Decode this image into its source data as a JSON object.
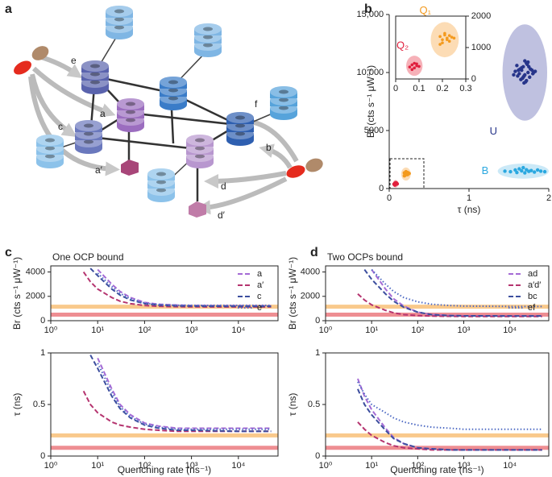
{
  "diagram": {
    "panel": "a",
    "labels": [
      "e",
      "a",
      "c",
      "a′",
      "f",
      "b",
      "d",
      "d′"
    ]
  },
  "chart_data": [
    {
      "type": "scatter",
      "panel": "b",
      "xlabel": "τ (ns)",
      "ylabel": "Br (cts s⁻¹ μW⁻¹)",
      "xlim": [
        0,
        2
      ],
      "xticks": [
        0,
        1,
        2
      ],
      "ylim": [
        0,
        15000
      ],
      "yticks": [
        0,
        5000,
        {
          "value": 10000,
          "label": "10,000"
        },
        {
          "value": 15000,
          "label": "15,000"
        }
      ],
      "series": [
        {
          "name": "U",
          "color": "#27358a",
          "ellipse_color": "#b4b6da",
          "ellipse": {
            "cx": 1.7,
            "cy": 10000,
            "rx": 0.28,
            "ry": 4150
          },
          "x": [
            1.62,
            1.7,
            1.75,
            1.68,
            1.58,
            1.8,
            1.72,
            1.65,
            1.77,
            1.6,
            1.69,
            1.74,
            1.66,
            1.71,
            1.83,
            1.63,
            1.73,
            1.67,
            1.79,
            1.56,
            1.7,
            1.76,
            1.64,
            1.72,
            1.68,
            1.81,
            1.61,
            1.74,
            1.69,
            1.66
          ],
          "values": [
            10200,
            9800,
            10500,
            9600,
            10100,
            9900,
            10800,
            9400,
            10300,
            10600,
            9700,
            10000,
            10400,
            9200,
            10100,
            9900,
            10700,
            9500,
            10200,
            9800,
            11000,
            9600,
            10300,
            9300,
            10500,
            10000,
            9700,
            10900,
            9100,
            10200
          ]
        },
        {
          "name": "B",
          "color": "#2aa8e0",
          "ellipse_color": "#c2e5f6",
          "ellipse": {
            "cx": 1.68,
            "cy": 1500,
            "rx": 0.32,
            "ry": 650
          },
          "x": [
            1.45,
            1.52,
            1.58,
            1.6,
            1.63,
            1.66,
            1.7,
            1.72,
            1.75,
            1.78,
            1.82,
            1.86,
            1.9,
            1.95,
            1.68
          ],
          "values": [
            1500,
            1450,
            1600,
            1380,
            1700,
            1520,
            1350,
            1620,
            1480,
            1550,
            1420,
            1600,
            1500,
            1450,
            1800
          ]
        },
        {
          "name": "Q₁",
          "color": "#f39a1e",
          "ellipse_color": "#fbd6a8",
          "ellipse": {
            "cx": 0.21,
            "cy": 1250,
            "rx": 0.06,
            "ry": 560
          },
          "x": [
            0.19,
            0.2,
            0.21,
            0.22,
            0.23,
            0.2,
            0.24,
            0.21,
            0.22,
            0.25,
            0.19,
            0.23
          ],
          "values": [
            1350,
            1250,
            1400,
            1300,
            1200,
            1150,
            1330,
            1450,
            1250,
            1300,
            1100,
            1380
          ]
        },
        {
          "name": "Q₂",
          "color": "#e01f3d",
          "ellipse_color": "#f5a3ab",
          "ellipse": {
            "cx": 0.08,
            "cy": 420,
            "rx": 0.035,
            "ry": 320
          },
          "x": [
            0.06,
            0.07,
            0.08,
            0.09,
            0.07,
            0.08,
            0.09,
            0.1
          ],
          "values": [
            380,
            450,
            500,
            420,
            300,
            350,
            480,
            400
          ]
        }
      ],
      "inset": {
        "xlim": [
          0,
          0.3
        ],
        "xticks": [
          0,
          0.1,
          0.2,
          0.3
        ],
        "ylim": [
          0,
          2000
        ],
        "yticks": [
          0,
          1000,
          2000
        ],
        "series_shown": [
          "Q₁",
          "Q₂"
        ]
      }
    },
    {
      "type": "line",
      "panel": "c",
      "title": "One OCP bound",
      "ylabel": "Br (cts s⁻¹ μW⁻¹)",
      "xscale": "log",
      "xlim": [
        1,
        70000
      ],
      "xticks": [
        {
          "value": 1,
          "label": "10⁰"
        },
        {
          "value": 10,
          "label": "10¹"
        },
        {
          "value": 100,
          "label": "10²"
        },
        {
          "value": 1000,
          "label": "10³"
        },
        {
          "value": 10000,
          "label": "10⁴"
        }
      ],
      "ylim": [
        0,
        4500
      ],
      "yticks": [
        0,
        2000,
        4000
      ],
      "legend": "upper right",
      "bands": [
        {
          "value": 1150,
          "color": "#f9c98c"
        },
        {
          "value": 500,
          "color": "#ee8e92"
        }
      ],
      "series": [
        {
          "name": "a",
          "color": "#a56bd5",
          "dash": "dashed",
          "x": [
            10,
            20,
            30,
            50,
            100,
            200,
            500,
            1000,
            10000,
            50000
          ],
          "values": [
            4200,
            3000,
            2400,
            1900,
            1500,
            1350,
            1280,
            1250,
            1230,
            1220
          ]
        },
        {
          "name": "a′",
          "color": "#b5346f",
          "dash": "dashed",
          "x": [
            5,
            7,
            10,
            20,
            30,
            50,
            100,
            200,
            500,
            1000,
            10000,
            50000
          ],
          "values": [
            4000,
            3200,
            2600,
            1900,
            1600,
            1400,
            1250,
            1180,
            1150,
            1140,
            1130,
            1130
          ]
        },
        {
          "name": "c",
          "color": "#3c4e9e",
          "dash": "dashed",
          "x": [
            7,
            10,
            20,
            30,
            50,
            100,
            200,
            500,
            1000,
            10000,
            50000
          ],
          "values": [
            4300,
            3700,
            2600,
            2100,
            1700,
            1400,
            1280,
            1220,
            1200,
            1180,
            1180
          ]
        },
        {
          "name": "e",
          "color": "#4f6bc4",
          "dash": "dotted",
          "x": [
            10,
            20,
            30,
            50,
            100,
            200,
            500,
            1000,
            10000,
            50000
          ],
          "values": [
            3900,
            2800,
            2250,
            1800,
            1450,
            1320,
            1270,
            1260,
            1260,
            1260
          ]
        }
      ]
    },
    {
      "type": "line",
      "xlabel": "Quenching rate (ns⁻¹)",
      "ylabel": "τ (ns)",
      "xscale": "log",
      "xlim": [
        1,
        70000
      ],
      "xticks": [
        {
          "value": 1,
          "label": "10⁰"
        },
        {
          "value": 10,
          "label": "10¹"
        },
        {
          "value": 100,
          "label": "10²"
        },
        {
          "value": 1000,
          "label": "10³"
        },
        {
          "value": 10000,
          "label": "10⁴"
        }
      ],
      "ylim": [
        0,
        1
      ],
      "yticks": [
        0,
        0.5,
        1
      ],
      "bands": [
        {
          "value": 0.2,
          "color": "#f9c98c"
        },
        {
          "value": 0.08,
          "color": "#ee8e92"
        }
      ],
      "series": [
        {
          "name": "a",
          "color": "#a56bd5",
          "dash": "dashed",
          "x": [
            10,
            20,
            30,
            50,
            100,
            200,
            500,
            1000,
            10000,
            50000
          ],
          "values": [
            0.95,
            0.65,
            0.5,
            0.4,
            0.32,
            0.29,
            0.27,
            0.27,
            0.27,
            0.27
          ]
        },
        {
          "name": "a′",
          "color": "#b5346f",
          "dash": "dashed",
          "x": [
            5,
            7,
            10,
            20,
            30,
            50,
            100,
            200,
            500,
            1000,
            10000,
            50000
          ],
          "values": [
            0.63,
            0.5,
            0.42,
            0.33,
            0.3,
            0.28,
            0.26,
            0.25,
            0.24,
            0.24,
            0.24,
            0.24
          ]
        },
        {
          "name": "c",
          "color": "#3c4e9e",
          "dash": "dashed",
          "x": [
            7,
            10,
            20,
            30,
            50,
            100,
            200,
            500,
            1000,
            10000,
            50000
          ],
          "values": [
            0.98,
            0.85,
            0.58,
            0.46,
            0.37,
            0.3,
            0.27,
            0.25,
            0.25,
            0.24,
            0.24
          ]
        },
        {
          "name": "e",
          "color": "#4f6bc4",
          "dash": "dotted",
          "x": [
            10,
            20,
            30,
            50,
            100,
            200,
            500,
            1000,
            10000,
            50000
          ],
          "values": [
            0.9,
            0.62,
            0.48,
            0.38,
            0.31,
            0.28,
            0.26,
            0.26,
            0.26,
            0.26
          ]
        }
      ]
    },
    {
      "type": "line",
      "panel": "d",
      "title": "Two OCPs bound",
      "ylabel": "Br (cts s⁻¹ μW⁻¹)",
      "xscale": "log",
      "xlim": [
        1,
        70000
      ],
      "xticks": [
        {
          "value": 1,
          "label": "10⁰"
        },
        {
          "value": 10,
          "label": "10¹"
        },
        {
          "value": 100,
          "label": "10²"
        },
        {
          "value": 1000,
          "label": "10³"
        },
        {
          "value": 10000,
          "label": "10⁴"
        }
      ],
      "ylim": [
        0,
        4500
      ],
      "yticks": [
        0,
        2000,
        4000
      ],
      "legend": "upper right",
      "bands": [
        {
          "value": 1150,
          "color": "#f9c98c"
        },
        {
          "value": 500,
          "color": "#ee8e92"
        }
      ],
      "series": [
        {
          "name": "ad",
          "color": "#a56bd5",
          "dash": "dashed",
          "x": [
            10,
            20,
            30,
            50,
            100,
            200,
            500,
            1000,
            10000,
            50000
          ],
          "values": [
            4200,
            2600,
            1800,
            1200,
            700,
            500,
            420,
            400,
            380,
            380
          ]
        },
        {
          "name": "a′d′",
          "color": "#b5346f",
          "dash": "dashed",
          "x": [
            5,
            7,
            10,
            20,
            30,
            50,
            100,
            200,
            500,
            1000,
            10000,
            50000
          ],
          "values": [
            2200,
            1700,
            1300,
            850,
            650,
            500,
            420,
            380,
            360,
            350,
            350,
            350
          ]
        },
        {
          "name": "bc",
          "color": "#3c4e9e",
          "dash": "dashed",
          "x": [
            7,
            10,
            20,
            30,
            50,
            100,
            200,
            500,
            1000,
            10000,
            50000
          ],
          "values": [
            4200,
            3400,
            2200,
            1600,
            1100,
            700,
            500,
            420,
            400,
            390,
            390
          ]
        },
        {
          "name": "ef",
          "color": "#4f6bc4",
          "dash": "dotted",
          "x": [
            10,
            20,
            30,
            50,
            100,
            200,
            500,
            1000,
            10000,
            50000
          ],
          "values": [
            4200,
            3000,
            2400,
            1900,
            1550,
            1350,
            1250,
            1200,
            1170,
            1170
          ]
        }
      ]
    },
    {
      "type": "line",
      "xlabel": "Quenching rate (ns⁻¹)",
      "ylabel": "τ (ns)",
      "xscale": "log",
      "xlim": [
        1,
        70000
      ],
      "xticks": [
        {
          "value": 1,
          "label": "10⁰"
        },
        {
          "value": 10,
          "label": "10¹"
        },
        {
          "value": 100,
          "label": "10²"
        },
        {
          "value": 1000,
          "label": "10³"
        },
        {
          "value": 10000,
          "label": "10⁴"
        }
      ],
      "ylim": [
        0,
        1
      ],
      "yticks": [
        0,
        0.5,
        1
      ],
      "bands": [
        {
          "value": 0.2,
          "color": "#f9c98c"
        },
        {
          "value": 0.08,
          "color": "#ee8e92"
        }
      ],
      "series": [
        {
          "name": "ad",
          "color": "#a56bd5",
          "dash": "dashed",
          "x": [
            5,
            7,
            10,
            20,
            30,
            50,
            100,
            200,
            500,
            1000,
            10000,
            50000
          ],
          "values": [
            0.75,
            0.58,
            0.45,
            0.27,
            0.18,
            0.12,
            0.08,
            0.07,
            0.06,
            0.06,
            0.06,
            0.06
          ]
        },
        {
          "name": "a′d′",
          "color": "#b5346f",
          "dash": "dashed",
          "x": [
            5,
            7,
            10,
            20,
            30,
            50,
            100,
            200,
            500,
            10000,
            50000
          ],
          "values": [
            0.33,
            0.26,
            0.2,
            0.13,
            0.1,
            0.08,
            0.07,
            0.06,
            0.06,
            0.06,
            0.06
          ]
        },
        {
          "name": "bc",
          "color": "#3c4e9e",
          "dash": "dashed",
          "x": [
            5,
            7,
            10,
            20,
            30,
            50,
            100,
            200,
            500,
            1000,
            10000,
            50000
          ],
          "values": [
            0.65,
            0.5,
            0.4,
            0.25,
            0.17,
            0.12,
            0.08,
            0.07,
            0.06,
            0.06,
            0.06,
            0.06
          ]
        },
        {
          "name": "ef",
          "color": "#4f6bc4",
          "dash": "dotted",
          "x": [
            5,
            7,
            10,
            20,
            30,
            50,
            100,
            200,
            500,
            1000,
            10000,
            50000
          ],
          "values": [
            0.72,
            0.6,
            0.5,
            0.42,
            0.37,
            0.33,
            0.3,
            0.28,
            0.27,
            0.26,
            0.26,
            0.26
          ]
        }
      ]
    }
  ]
}
